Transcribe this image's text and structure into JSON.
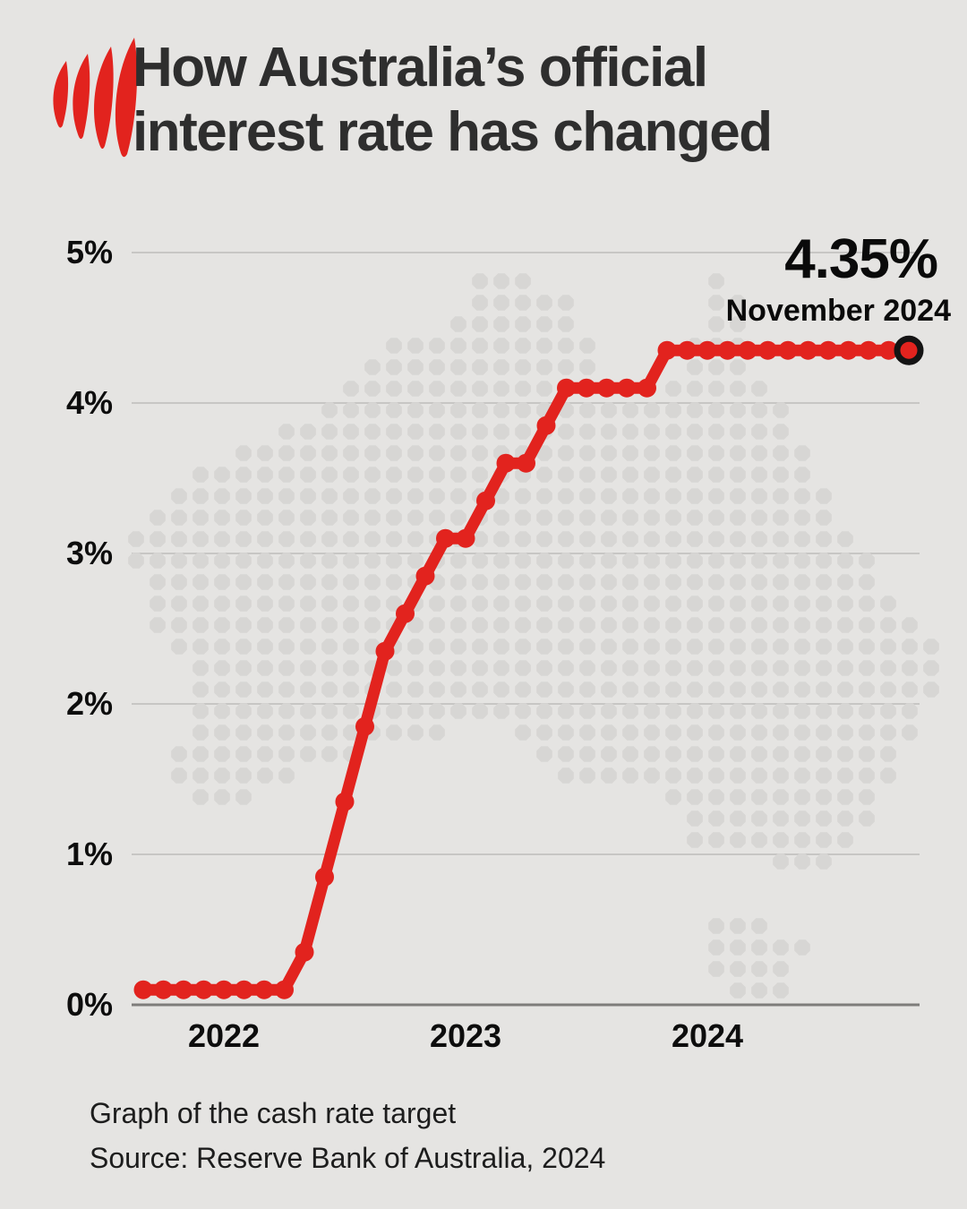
{
  "page": {
    "background_color": "#e5e4e2"
  },
  "header": {
    "logo": "sbs-logo",
    "logo_color": "#e2231e",
    "title_line1": "How Australia’s official",
    "title_line2": "interest rate has changed"
  },
  "annotation": {
    "value": "4.35%",
    "date": "November 2024"
  },
  "footer": {
    "caption": "Graph of the cash rate target",
    "source": "Source: Reserve Bank of Australia, 2024"
  },
  "chart_data": {
    "type": "line",
    "title": "How Australia’s official interest rate has changed",
    "series_name": "Cash rate target",
    "x": [
      "Sep 2021",
      "Oct 2021",
      "Nov 2021",
      "Dec 2021",
      "Jan 2022",
      "Feb 2022",
      "Mar 2022",
      "Apr 2022",
      "May 2022",
      "Jun 2022",
      "Jul 2022",
      "Aug 2022",
      "Sep 2022",
      "Oct 2022",
      "Nov 2022",
      "Dec 2022",
      "Jan 2023",
      "Feb 2023",
      "Mar 2023",
      "Apr 2023",
      "May 2023",
      "Jun 2023",
      "Jul 2023",
      "Aug 2023",
      "Sep 2023",
      "Oct 2023",
      "Nov 2023",
      "Dec 2023",
      "Jan 2024",
      "Feb 2024",
      "Mar 2024",
      "Apr 2024",
      "May 2024",
      "Jun 2024",
      "Jul 2024",
      "Aug 2024",
      "Sep 2024",
      "Oct 2024",
      "Nov 2024"
    ],
    "values": [
      0.1,
      0.1,
      0.1,
      0.1,
      0.1,
      0.1,
      0.1,
      0.1,
      0.35,
      0.85,
      1.35,
      1.85,
      2.35,
      2.6,
      2.85,
      3.1,
      3.1,
      3.35,
      3.6,
      3.6,
      3.85,
      4.1,
      4.1,
      4.1,
      4.1,
      4.1,
      4.35,
      4.35,
      4.35,
      4.35,
      4.35,
      4.35,
      4.35,
      4.35,
      4.35,
      4.35,
      4.35,
      4.35,
      4.35
    ],
    "ylim": [
      0,
      5
    ],
    "grid": true,
    "y_axis": {
      "ticks": [
        {
          "label": "0%",
          "value": 0
        },
        {
          "label": "1%",
          "value": 1
        },
        {
          "label": "2%",
          "value": 2
        },
        {
          "label": "3%",
          "value": 3
        },
        {
          "label": "4%",
          "value": 4
        },
        {
          "label": "5%",
          "value": 5
        }
      ]
    },
    "x_axis": {
      "ticks": [
        {
          "label": "2022",
          "index": 4
        },
        {
          "label": "2023",
          "index": 16
        },
        {
          "label": "2024",
          "index": 28
        }
      ]
    },
    "line_color": "#e2231e",
    "end_ring_color": "#141414",
    "endpoint": {
      "label": "4.35%",
      "date": "November 2024",
      "style": "open-ring"
    },
    "background_motif": "australia-dot-map"
  }
}
